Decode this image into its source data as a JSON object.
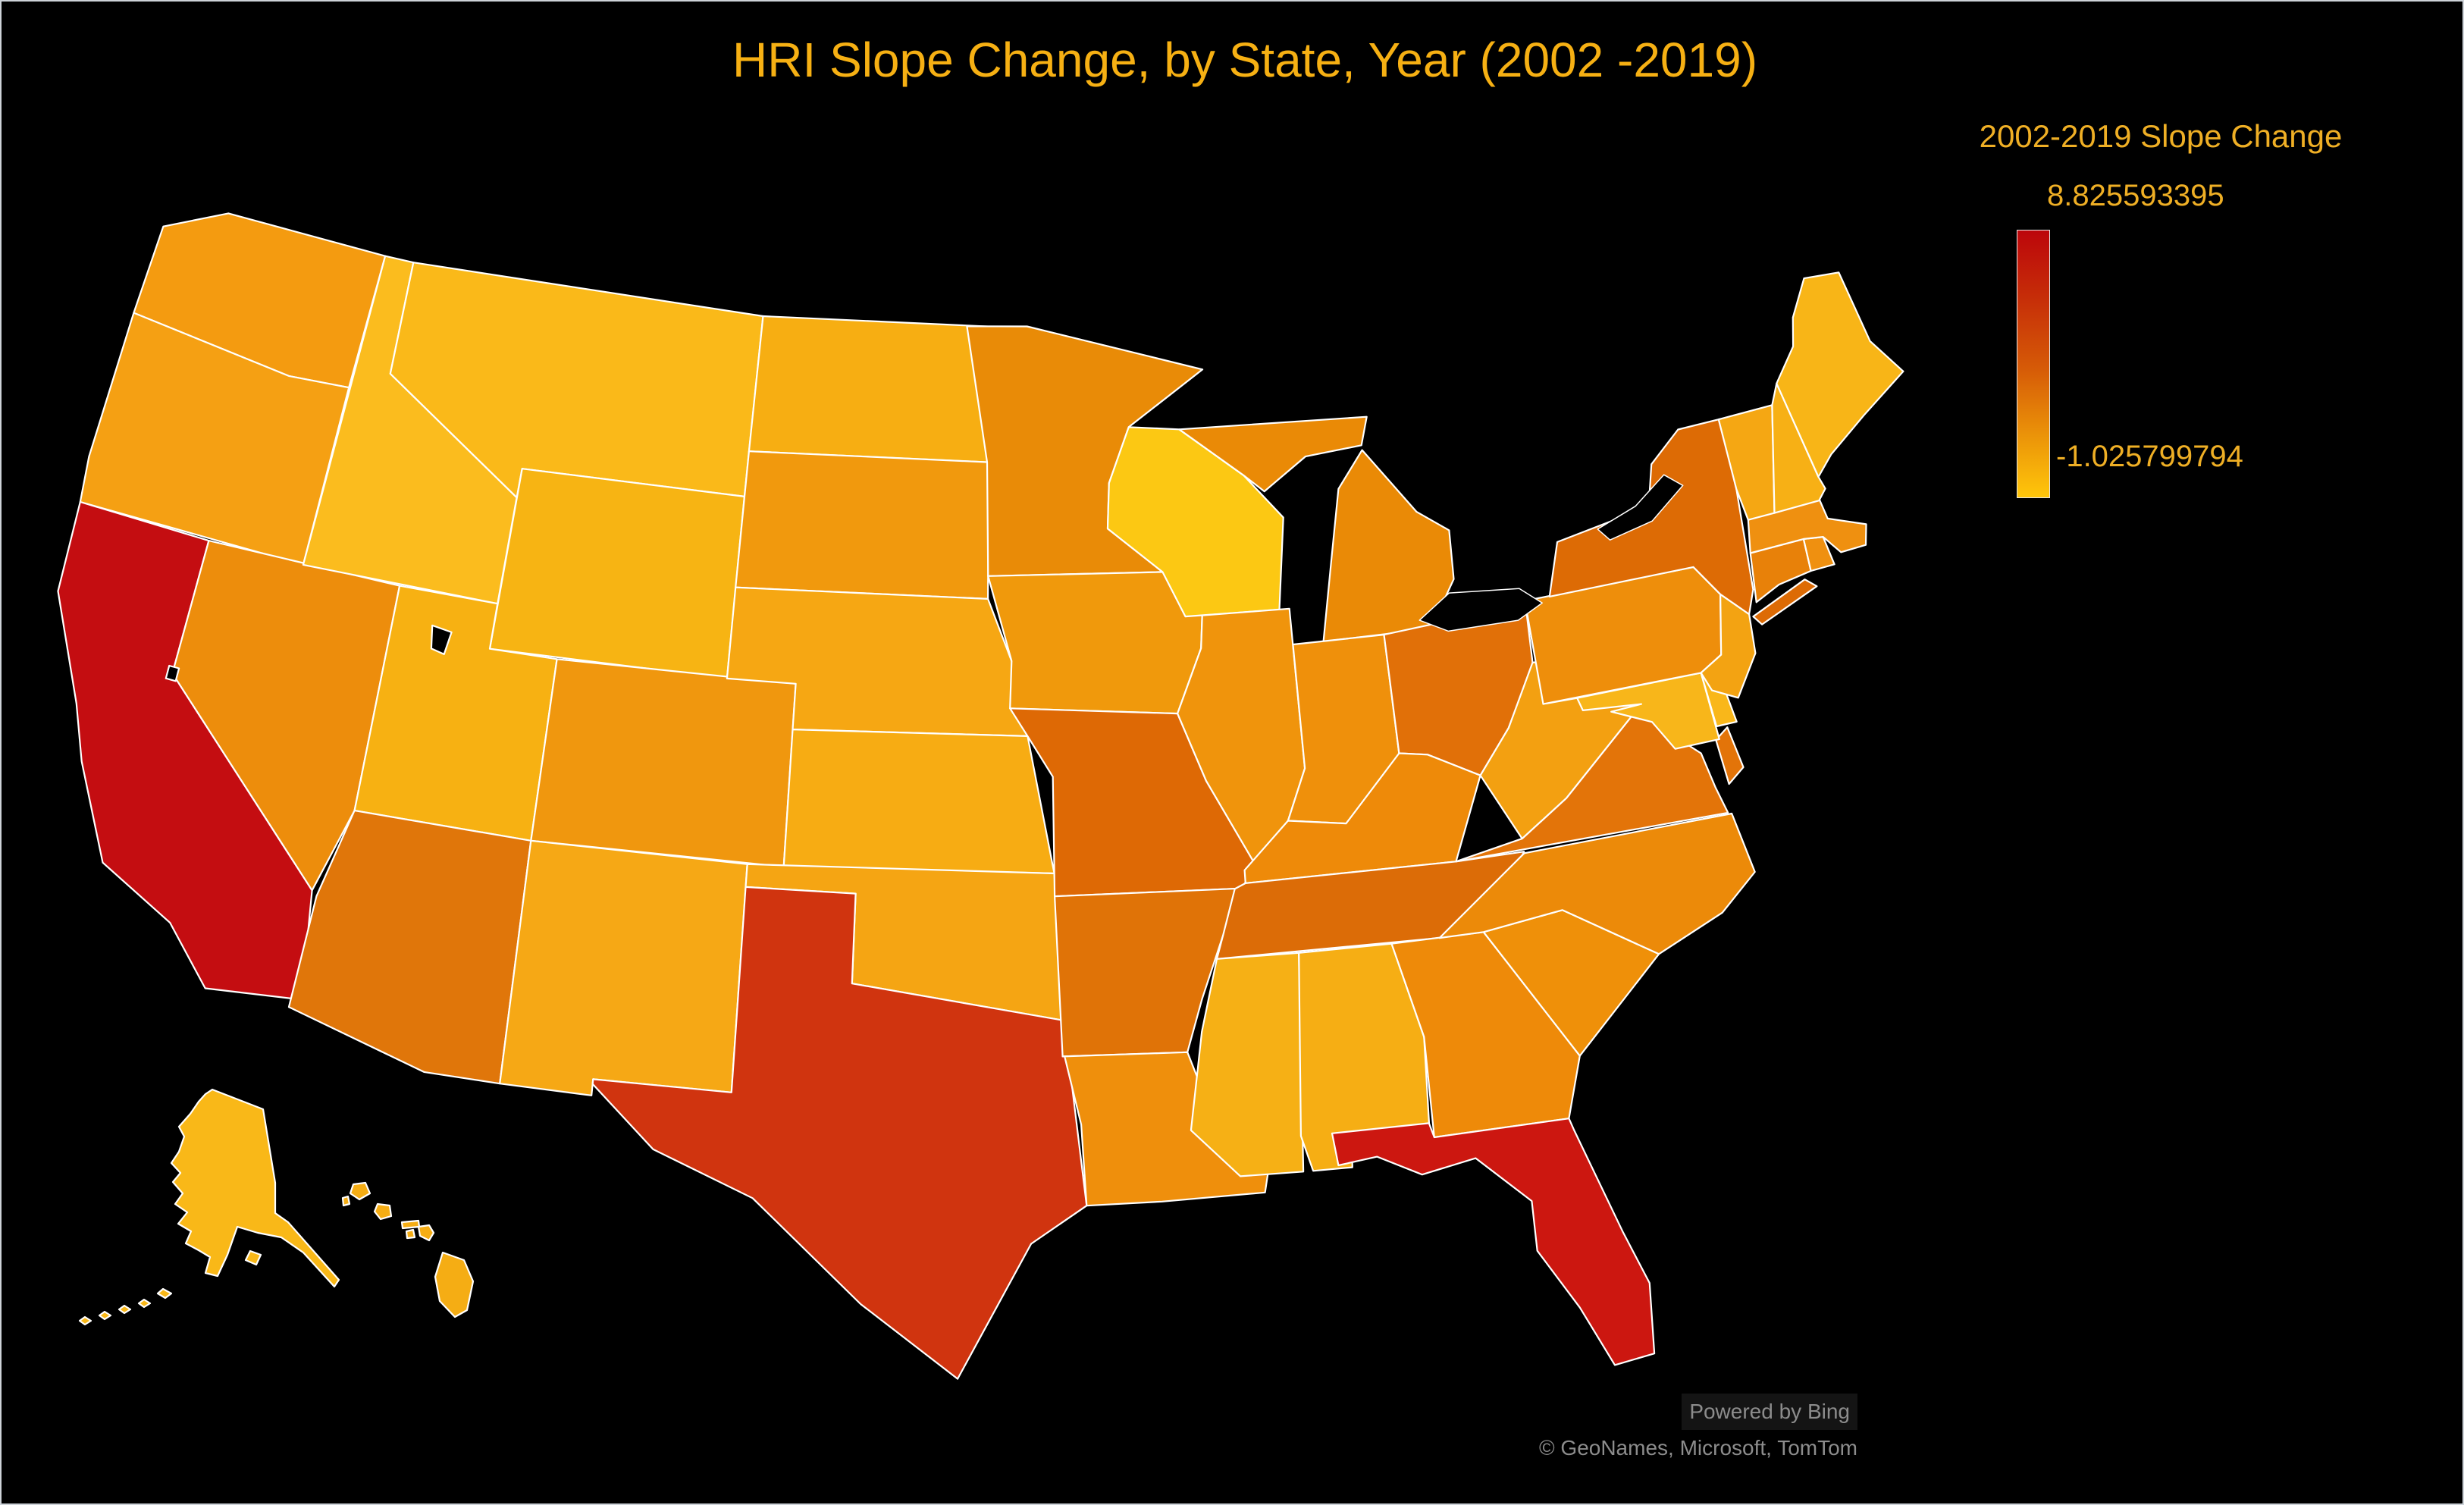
{
  "title": {
    "text": "HRI Slope Change, by State, Year (2002 -2019)",
    "color": "#F6B013"
  },
  "legend": {
    "title": "2002-2019 Slope Change",
    "max_label": "8.825593395",
    "min_label": "-1.025799794",
    "text_color": "#EFAF25",
    "gradient_stops": [
      "#BC060B 0%",
      "#C62D08 25%",
      "#D65B07 52%",
      "#EC9609 78%",
      "#FFC60A 100%"
    ]
  },
  "attribution": {
    "line1": "Powered by Bing",
    "line2": "© GeoNames, Microsoft, TomTom",
    "color": "#8C8C8C"
  },
  "background": "#000000",
  "chart_data": {
    "type": "choropleth",
    "region": "United States (states, with Alaska and Hawaii insets)",
    "measure": "2002-2019 Slope Change",
    "title": "HRI Slope Change, by State, Year (2002 -2019)",
    "scale": {
      "min": -1.025799794,
      "max": 8.825593395,
      "min_color": "#FFC60A",
      "max_color": "#BC060B",
      "legend_position": "right"
    },
    "states": [
      {
        "id": "wa",
        "name": "Washington",
        "fill": "#F49B10",
        "value_est": 0.95
      },
      {
        "id": "or",
        "name": "Oregon",
        "fill": "#F5A013",
        "value_est": 0.8
      },
      {
        "id": "ca",
        "name": "California",
        "fill": "#C40D11",
        "value_est": 8.83
      },
      {
        "id": "nv",
        "name": "Nevada",
        "fill": "#ED8D0C",
        "value_est": 1.9
      },
      {
        "id": "id",
        "name": "Idaho",
        "fill": "#FBBC1E",
        "value_est": -0.5
      },
      {
        "id": "mt",
        "name": "Montana",
        "fill": "#FAB919",
        "value_est": -0.45
      },
      {
        "id": "wy",
        "name": "Wyoming",
        "fill": "#F7B413",
        "value_est": -0.35
      },
      {
        "id": "ut",
        "name": "Utah",
        "fill": "#F7B112",
        "value_est": -0.3
      },
      {
        "id": "co",
        "name": "Colorado",
        "fill": "#F0970E",
        "value_est": 1.3
      },
      {
        "id": "az",
        "name": "Arizona",
        "fill": "#E0760A",
        "value_est": 3.2
      },
      {
        "id": "nm",
        "name": "New Mexico",
        "fill": "#F6A815",
        "value_est": 0.5
      },
      {
        "id": "nd",
        "name": "North Dakota",
        "fill": "#F7AE12",
        "value_est": 0.3
      },
      {
        "id": "sd",
        "name": "South Dakota",
        "fill": "#F1990D",
        "value_est": 1.2
      },
      {
        "id": "ne",
        "name": "Nebraska",
        "fill": "#F6A713",
        "value_est": 0.4
      },
      {
        "id": "ks",
        "name": "Kansas",
        "fill": "#F7AC13",
        "value_est": 0.35
      },
      {
        "id": "ok",
        "name": "Oklahoma",
        "fill": "#F5A513",
        "value_est": 0.45
      },
      {
        "id": "tx",
        "name": "Texas",
        "fill": "#D0340F",
        "value_est": 6.0
      },
      {
        "id": "mn",
        "name": "Minnesota",
        "fill": "#E98B07",
        "value_est": 2.1
      },
      {
        "id": "ia",
        "name": "Iowa",
        "fill": "#F0990C",
        "value_est": 1.1
      },
      {
        "id": "mo",
        "name": "Missouri",
        "fill": "#DE6905",
        "value_est": 4.0
      },
      {
        "id": "ar",
        "name": "Arkansas",
        "fill": "#E07307",
        "value_est": 3.4
      },
      {
        "id": "la",
        "name": "Louisiana",
        "fill": "#EF8F0C",
        "value_est": 1.5
      },
      {
        "id": "wi",
        "name": "Wisconsin",
        "fill": "#FCC813",
        "value_est": -1.03
      },
      {
        "id": "il",
        "name": "Illinois",
        "fill": "#F0940C",
        "value_est": 1.3
      },
      {
        "id": "mi",
        "name": "Michigan",
        "fill": "#EA8A06",
        "value_est": 2.0
      },
      {
        "id": "in",
        "name": "Indiana",
        "fill": "#EF900B",
        "value_est": 1.5
      },
      {
        "id": "oh",
        "name": "Ohio",
        "fill": "#E17008",
        "value_est": 3.5
      },
      {
        "id": "ky",
        "name": "Kentucky",
        "fill": "#EE8A09",
        "value_est": 2.0
      },
      {
        "id": "tn",
        "name": "Tennessee",
        "fill": "#DC6C07",
        "value_est": 4.0
      },
      {
        "id": "ms",
        "name": "Mississippi",
        "fill": "#F6B015",
        "value_est": -0.2
      },
      {
        "id": "al",
        "name": "Alabama",
        "fill": "#F6AE14",
        "value_est": -0.2
      },
      {
        "id": "ga",
        "name": "Georgia",
        "fill": "#EE8A09",
        "value_est": 2.1
      },
      {
        "id": "fl",
        "name": "Florida",
        "fill": "#CC1710",
        "value_est": 7.4
      },
      {
        "id": "sc",
        "name": "South Carolina",
        "fill": "#EF9009",
        "value_est": 1.45
      },
      {
        "id": "nc",
        "name": "North Carolina",
        "fill": "#EC8A09",
        "value_est": 2.1
      },
      {
        "id": "va",
        "name": "Virginia",
        "fill": "#E37409",
        "value_est": 3.3
      },
      {
        "id": "wv",
        "name": "West Virginia",
        "fill": "#F3A011",
        "value_est": 0.6
      },
      {
        "id": "md",
        "name": "Maryland",
        "fill": "#F8B61A",
        "value_est": -0.35
      },
      {
        "id": "de",
        "name": "Delaware",
        "fill": "#F9B71A",
        "value_est": -0.3
      },
      {
        "id": "pa",
        "name": "Pennsylvania",
        "fill": "#EE8E0B",
        "value_est": 1.9
      },
      {
        "id": "nj",
        "name": "New Jersey",
        "fill": "#F3A312",
        "value_est": 0.55
      },
      {
        "id": "ny",
        "name": "New York",
        "fill": "#DD6B05",
        "value_est": 3.9
      },
      {
        "id": "ct",
        "name": "Connecticut",
        "fill": "#E88109",
        "value_est": 2.6
      },
      {
        "id": "ri",
        "name": "Rhode Island",
        "fill": "#EF9010",
        "value_est": 1.4
      },
      {
        "id": "ma",
        "name": "Massachusetts",
        "fill": "#EF9010",
        "value_est": 1.4
      },
      {
        "id": "vt",
        "name": "Vermont",
        "fill": "#F5A713",
        "value_est": 0.5
      },
      {
        "id": "nh",
        "name": "New Hampshire",
        "fill": "#F7B015",
        "value_est": -0.2
      },
      {
        "id": "me",
        "name": "Maine",
        "fill": "#F8B517",
        "value_est": -0.3
      },
      {
        "id": "ak",
        "name": "Alaska",
        "fill": "#F9B818",
        "value_est": -0.4
      },
      {
        "id": "hi",
        "name": "Hawaii",
        "fill": "#F5AD14",
        "value_est": -0.2
      }
    ]
  }
}
